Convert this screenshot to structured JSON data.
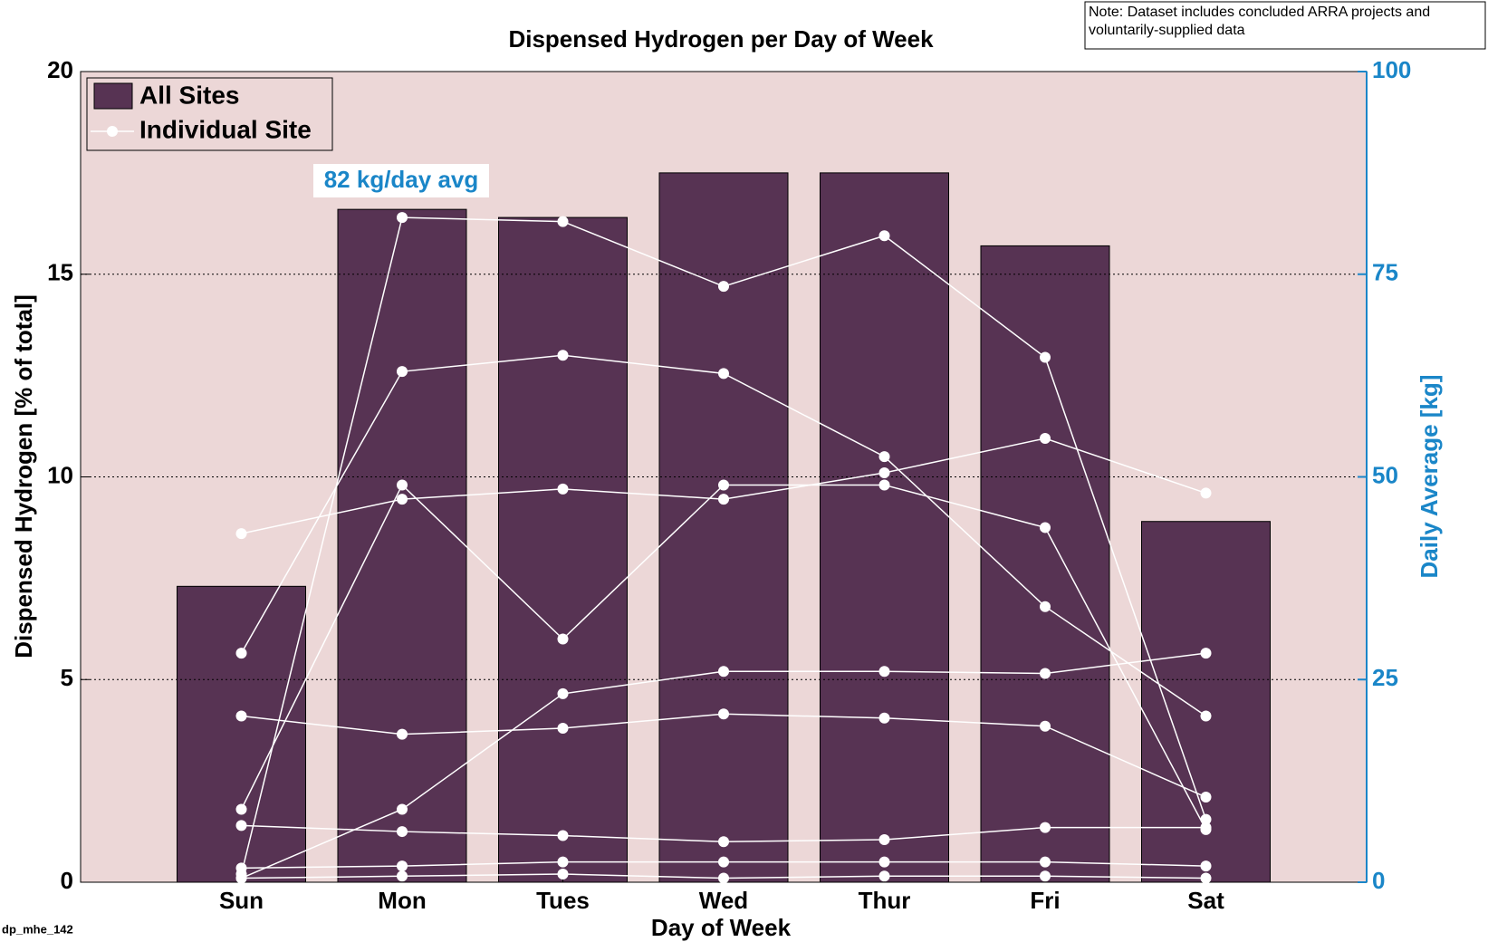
{
  "chart_data": {
    "type": "bar",
    "title": "Dispensed Hydrogen per Day of Week",
    "note": "Note: Dataset includes concluded ARRA projects and voluntarily-supplied data",
    "footer": "dp_mhe_142",
    "annotation": "82 kg/day avg",
    "x_label": "Day of Week",
    "y_label": "Dispensed Hydrogen [% of total]",
    "y2_label": "Daily Average [kg]",
    "categories": [
      "Sun",
      "Mon",
      "Tues",
      "Wed",
      "Thur",
      "Fri",
      "Sat"
    ],
    "ylim": [
      0,
      20
    ],
    "yticks": [
      0,
      5,
      10,
      15,
      20
    ],
    "y2lim": [
      0,
      100
    ],
    "y2ticks": [
      0,
      25,
      50,
      75,
      100
    ],
    "y2color": "#1a86c8",
    "grid": true,
    "legend": "upper left",
    "series": [
      {
        "name": "All Sites",
        "color": "#573353",
        "values": [
          7.3,
          16.6,
          16.4,
          17.5,
          17.5,
          15.7,
          8.9
        ]
      }
    ],
    "sites": {
      "name": "Individual Site",
      "color": "#ffffff",
      "lines": [
        [
          0.2,
          16.4,
          16.3,
          14.7,
          15.95,
          12.95,
          1.55
        ],
        [
          8.6,
          9.45,
          9.7,
          9.45,
          10.1,
          10.95,
          9.6
        ],
        [
          1.8,
          9.8,
          6.0,
          9.8,
          9.8,
          8.75,
          1.3
        ],
        [
          5.65,
          12.6,
          13.0,
          12.55,
          10.5,
          6.8,
          4.1
        ],
        [
          4.1,
          3.65,
          3.8,
          4.15,
          4.05,
          3.85,
          2.1
        ],
        [
          0.1,
          1.8,
          4.65,
          5.2,
          5.2,
          5.15,
          5.65
        ],
        [
          1.4,
          1.25,
          1.15,
          1.0,
          1.05,
          1.35,
          1.35
        ],
        [
          0.35,
          0.4,
          0.5,
          0.5,
          0.5,
          0.5,
          0.4
        ],
        [
          0.1,
          0.15,
          0.2,
          0.1,
          0.15,
          0.15,
          0.1
        ]
      ]
    }
  }
}
